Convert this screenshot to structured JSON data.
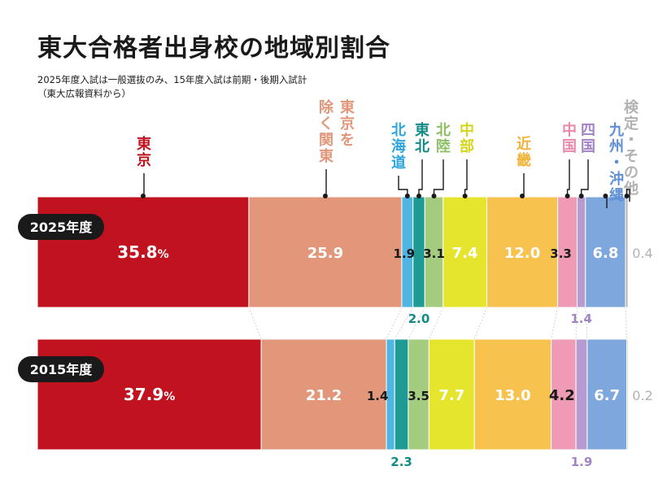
{
  "title": "東大合格者出身校の地域別割合",
  "subtitle_1": "2025年度入試は一般選抜のみ、15年度入試は前期・後期入試計",
  "subtitle_2": "（東大広報資料から）",
  "chart_data": {
    "type": "bar",
    "orientation": "horizontal-stacked-100",
    "categories": [
      "東京",
      "東京を除く関東",
      "北海道",
      "東北",
      "北陸",
      "中部",
      "近畿",
      "中国",
      "四国",
      "九州・沖縄",
      "検定・その他"
    ],
    "category_labels": [
      [
        "東京"
      ],
      [
        "東京を",
        "除く関東"
      ],
      [
        "北海道"
      ],
      [
        "東北"
      ],
      [
        "北陸"
      ],
      [
        "中部"
      ],
      [
        "近畿"
      ],
      [
        "中国"
      ],
      [
        "四国"
      ],
      [
        "九州・沖縄"
      ],
      [
        "検定・その他"
      ]
    ],
    "colors": [
      "#c0121f",
      "#e2967a",
      "#4fb5e2",
      "#1f9a95",
      "#a3cc7e",
      "#e5e52d",
      "#f8c24f",
      "#f09bb5",
      "#b69ad0",
      "#7ea7de",
      "#b2b2b2"
    ],
    "label_colors": [
      "#c0121f",
      "#e2967a",
      "#2ea6dc",
      "#138a86",
      "#8cc063",
      "#d5d51a",
      "#f2b33a",
      "#ea89a8",
      "#a184c6",
      "#5e8fd6",
      "#b2b2b2"
    ],
    "series": [
      {
        "name": "2025年度",
        "values": [
          35.8,
          25.9,
          1.9,
          2.0,
          3.1,
          7.4,
          12.0,
          3.3,
          1.4,
          6.8,
          0.4
        ],
        "display": [
          "35.8%",
          "25.9",
          "1.9",
          "2.0",
          "3.1",
          "7.4",
          "12.0",
          "3.3",
          "1.4",
          "6.8",
          "0.4"
        ]
      },
      {
        "name": "2015年度",
        "values": [
          37.9,
          21.2,
          1.4,
          2.3,
          3.5,
          7.7,
          13.0,
          4.2,
          1.9,
          6.7,
          0.2
        ],
        "display": [
          "37.9%",
          "21.2",
          "1.4",
          "2.3",
          "3.5",
          "7.7",
          "13.0",
          "4.2",
          "1.9",
          "6.7",
          "0.2"
        ]
      }
    ],
    "unit": "%",
    "xlim": [
      0,
      100
    ]
  }
}
